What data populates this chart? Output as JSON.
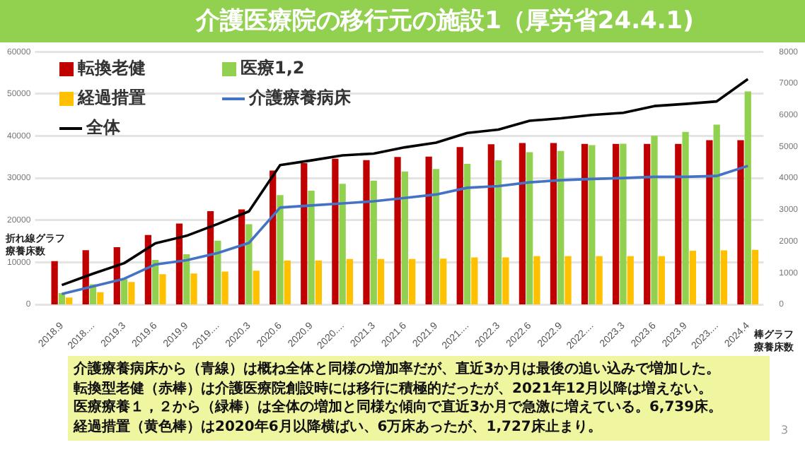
{
  "chart_data": {
    "type": "bar",
    "title": "介護医療院の移行元の施設1（厚労省24.4.1)",
    "ylabel": "折れ線グラフ療養床数",
    "y2label": "棒グラフ療養床数",
    "categories": [
      "2018.9",
      "2018....",
      "2019.3",
      "2019.6",
      "2019.9",
      "2019....",
      "2020.3",
      "2020.6",
      "2020.9",
      "2020....",
      "2021.3",
      "2021.6",
      "2021.9",
      "2021....",
      "2022.3",
      "2022.6",
      "2022.9",
      "2022....",
      "2023.3",
      "2023.6",
      "2023.9",
      "2023....",
      "2024.4"
    ],
    "series": [
      {
        "name": "転換老健",
        "axis": "y2",
        "color": "#c00000",
        "values": [
          1370,
          1720,
          1810,
          2200,
          2560,
          2950,
          3010,
          4240,
          4470,
          4610,
          4570,
          4670,
          4680,
          4980,
          5070,
          5110,
          5110,
          5080,
          5080,
          5080,
          5080,
          5200,
          5200
        ]
      },
      {
        "name": "医療1,2",
        "axis": "y2",
        "color": "#92d050",
        "values": [
          360,
          640,
          800,
          1410,
          1590,
          2020,
          2540,
          3460,
          3600,
          3820,
          3920,
          4210,
          4290,
          4450,
          4560,
          4820,
          4860,
          5040,
          5090,
          5340,
          5460,
          5690,
          6739
        ]
      },
      {
        "name": "経過措置",
        "axis": "y2",
        "color": "#ffc000",
        "values": [
          220,
          390,
          710,
          960,
          980,
          1040,
          1070,
          1390,
          1390,
          1440,
          1440,
          1440,
          1450,
          1490,
          1490,
          1530,
          1530,
          1530,
          1530,
          1530,
          1700,
          1710,
          1727
        ]
      },
      {
        "name": "介護療養病床",
        "type": "line",
        "axis": "y",
        "color": "#4472c4",
        "values": [
          2500,
          4300,
          6100,
          9500,
          10500,
          12200,
          14600,
          23000,
          23500,
          24000,
          24500,
          25300,
          26100,
          27700,
          28100,
          29000,
          29500,
          29800,
          30000,
          30300,
          30300,
          30500,
          32900
        ]
      },
      {
        "name": "全体",
        "type": "line",
        "axis": "y",
        "color": "#000000",
        "values": [
          4600,
          7300,
          9800,
          14500,
          16300,
          19100,
          22100,
          33100,
          34200,
          35400,
          35800,
          37300,
          38400,
          40700,
          41500,
          43600,
          44200,
          45000,
          45500,
          47100,
          47600,
          48200,
          53500
        ]
      }
    ],
    "ylim": [
      0,
      60000
    ],
    "yticks": [
      0,
      10000,
      20000,
      30000,
      40000,
      50000,
      60000
    ],
    "y2lim": [
      0,
      8000
    ],
    "y2ticks": [
      0,
      1000,
      2000,
      3000,
      4000,
      5000,
      6000,
      7000,
      8000
    ],
    "grid": "y",
    "legend": "top left",
    "marker": "none",
    "line_style": "solid",
    "annotations": [
      "介護療養病床から（青線）は概ね全体と同様の増加率だが、直近3か月は最後の追い込みで増加した。",
      "転換型老健（赤棒）は介護医療院創設時には移行に積極的だったが、2021年12月以降は増えない。",
      "医療療養１，２から（緑棒）は全体の増加と同様な傾向で直近3か月で急激に増えている。6,739床。",
      "経過措置（黄色棒）は2020年6月以降横ばい、6万床あったが、1,727床止まり。",
      "3"
    ]
  }
}
